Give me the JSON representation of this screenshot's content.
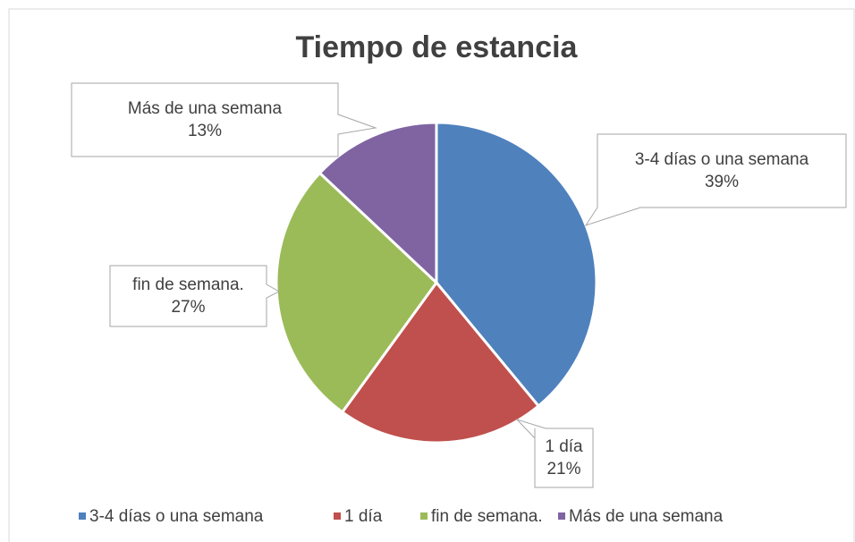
{
  "chart_data": {
    "type": "pie",
    "title": "Tiempo de estancia",
    "categories": [
      "3-4 días o una semana",
      "1 día",
      "fin de semana.",
      "Más de una semana"
    ],
    "values": [
      39,
      21,
      27,
      13
    ],
    "value_labels": [
      "39%",
      "21%",
      "27%",
      "13%"
    ],
    "colors": [
      "#4f81bd",
      "#c0504d",
      "#9bbb59",
      "#8064a2"
    ],
    "legend": "bottom"
  }
}
